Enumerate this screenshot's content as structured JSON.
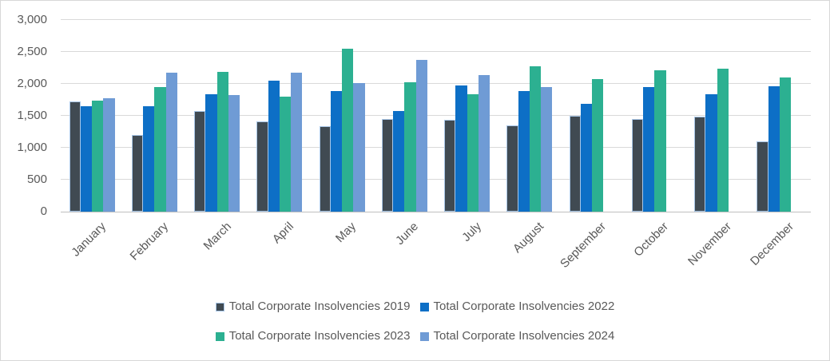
{
  "chart": {
    "background": "#ffffff",
    "frame_border_color": "#d8d8d8",
    "text_color": "#595959",
    "gridline_color": "#d9d9d9",
    "axis_line_color": "#bfbfbf"
  },
  "chart_data": {
    "type": "bar",
    "title": "",
    "xlabel": "",
    "ylabel": "",
    "categories": [
      "January",
      "February",
      "March",
      "April",
      "May",
      "June",
      "July",
      "August",
      "September",
      "October",
      "November",
      "December"
    ],
    "series": [
      {
        "name": "Total Corporate Insolvencies 2019",
        "color": "#404a52",
        "border": "#a9c7e8",
        "values": [
          1720,
          1205,
          1575,
          1410,
          1335,
          1445,
          1435,
          1350,
          1495,
          1455,
          1485,
          1105
        ]
      },
      {
        "name": "Total Corporate Insolvencies 2022",
        "color": "#0d6fc6",
        "border": null,
        "values": [
          1645,
          1645,
          1840,
          2045,
          1890,
          1580,
          1970,
          1890,
          1685,
          1955,
          1840,
          1965
        ]
      },
      {
        "name": "Total Corporate Insolvencies 2023",
        "color": "#2cb091",
        "border": null,
        "values": [
          1740,
          1945,
          2190,
          1805,
          2550,
          2020,
          1835,
          2275,
          2075,
          2215,
          2240,
          2105
        ]
      },
      {
        "name": "Total Corporate Insolvencies 2024",
        "color": "#6f9bd5",
        "border": null,
        "values": [
          1775,
          2180,
          1820,
          2170,
          2010,
          2370,
          2140,
          1950,
          null,
          null,
          null,
          null
        ]
      }
    ],
    "ylim": [
      0,
      3000
    ],
    "ytick_step": 500,
    "ytick_labels": [
      "0",
      "500",
      "1,000",
      "1,500",
      "2,000",
      "2,500",
      "3,000"
    ],
    "grid": true,
    "legend_position": "bottom",
    "legend_rows": [
      [
        0,
        1
      ],
      [
        2,
        3
      ]
    ]
  }
}
